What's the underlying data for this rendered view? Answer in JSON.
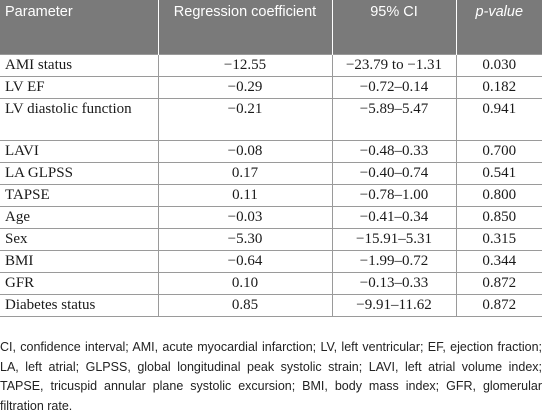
{
  "table": {
    "headers": {
      "parameter": "Parameter",
      "coefficient": "Regression coefficient",
      "ci": "95% CI",
      "pvalue": "p-value"
    },
    "rows": [
      {
        "parameter": "AMI status",
        "coefficient": "−12.55",
        "ci": "−23.79 to −1.31",
        "p": "0.030"
      },
      {
        "parameter": "LV EF",
        "coefficient": "−0.29",
        "ci": "−0.72–0.14",
        "p": "0.182"
      },
      {
        "parameter": "LV diastolic function",
        "coefficient": "−0.21",
        "ci": "−5.89–5.47",
        "p": "0.941"
      },
      {
        "parameter": "LAVI",
        "coefficient": "−0.08",
        "ci": "−0.48–0.33",
        "p": "0.700"
      },
      {
        "parameter": "LA GLPSS",
        "coefficient": "0.17",
        "ci": "−0.40–0.74",
        "p": "0.541"
      },
      {
        "parameter": "TAPSE",
        "coefficient": "0.11",
        "ci": "−0.78–1.00",
        "p": "0.800"
      },
      {
        "parameter": "Age",
        "coefficient": "−0.03",
        "ci": "−0.41–0.34",
        "p": "0.850"
      },
      {
        "parameter": "Sex",
        "coefficient": "−5.30",
        "ci": "−15.91–5.31",
        "p": "0.315"
      },
      {
        "parameter": "BMI",
        "coefficient": "−0.64",
        "ci": "−1.99–0.72",
        "p": "0.344"
      },
      {
        "parameter": "GFR",
        "coefficient": "0.10",
        "ci": "−0.13–0.33",
        "p": "0.872"
      },
      {
        "parameter": "Diabetes status",
        "coefficient": "0.85",
        "ci": "−9.91–11.62",
        "p": "0.872"
      }
    ]
  },
  "footnote": "CI, confidence interval; AMI, acute myocardial infarction; LV, left ventricular; EF, ejection fraction; LA, left atrial; GLPSS, global longitudinal peak systolic strain; LAVI, left atrial volume index; TAPSE, tricuspid annular plane systolic excursion; BMI, body mass index; GFR, glomerular filtration rate.",
  "colors": {
    "header_background": "#7a7a7a",
    "header_text": "#ffffff",
    "rule": "#9a9a9a"
  }
}
